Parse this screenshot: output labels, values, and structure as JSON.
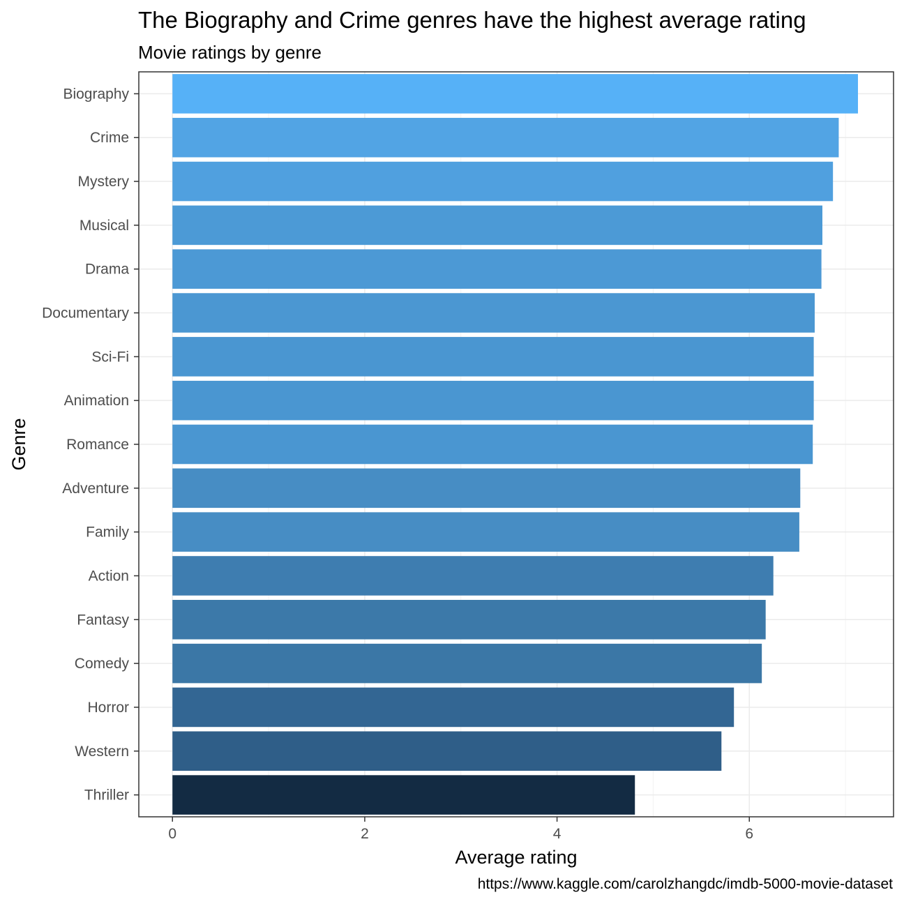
{
  "chart_data": {
    "type": "bar",
    "orientation": "horizontal",
    "title": "The Biography and Crime genres have the highest average rating",
    "subtitle": "Movie ratings by genre",
    "caption": "https://www.kaggle.com/carolzhangdc/imdb-5000-movie-dataset",
    "xlabel": "Average rating",
    "ylabel": "Genre",
    "xlim": [
      -0.35,
      7.5
    ],
    "xticks": [
      0,
      2,
      4,
      6
    ],
    "grid": true,
    "legend": "none",
    "categories": [
      "Biography",
      "Crime",
      "Mystery",
      "Musical",
      "Drama",
      "Documentary",
      "Sci-Fi",
      "Animation",
      "Romance",
      "Adventure",
      "Family",
      "Action",
      "Fantasy",
      "Comedy",
      "Horror",
      "Western",
      "Thriller"
    ],
    "values": [
      7.13,
      6.93,
      6.87,
      6.76,
      6.75,
      6.68,
      6.67,
      6.67,
      6.66,
      6.53,
      6.52,
      6.25,
      6.17,
      6.13,
      5.84,
      5.71,
      4.81
    ],
    "colors": [
      "#56b1f7",
      "#52a4e4",
      "#50a0df",
      "#4c9ad6",
      "#4c99d5",
      "#4b97d2",
      "#4a96d1",
      "#4a96d1",
      "#4a96d1",
      "#478dc4",
      "#478dc4",
      "#3e7db0",
      "#3c79a9",
      "#3b77a6",
      "#336693",
      "#2f5e88",
      "#132b43"
    ]
  }
}
